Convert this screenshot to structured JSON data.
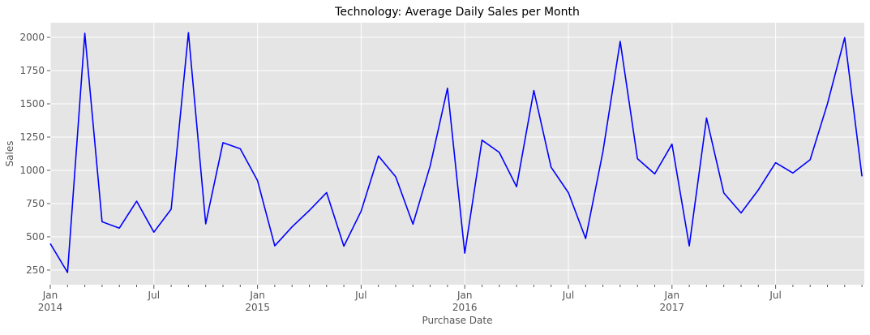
{
  "chart_data": {
    "type": "line",
    "title": "Technology: Average Daily Sales per Month",
    "xlabel": "Purchase Date",
    "ylabel": "Sales",
    "ylim": [
      140,
      2110
    ],
    "yticks": [
      250,
      500,
      750,
      1000,
      1250,
      1500,
      1750,
      2000
    ],
    "ytick_labels": [
      "250",
      "500",
      "750",
      "1000",
      "1250",
      "1500",
      "1750",
      "2000"
    ],
    "x_start": "2014-01",
    "x_end": "2017-12",
    "xticks_major": [
      {
        "index": 0,
        "label": "Jan",
        "sublabel": "2014"
      },
      {
        "index": 6,
        "label": "Jul",
        "sublabel": ""
      },
      {
        "index": 12,
        "label": "Jan",
        "sublabel": "2015"
      },
      {
        "index": 18,
        "label": "Jul",
        "sublabel": ""
      },
      {
        "index": 24,
        "label": "Jan",
        "sublabel": "2016"
      },
      {
        "index": 30,
        "label": "Jul",
        "sublabel": ""
      },
      {
        "index": 36,
        "label": "Jan",
        "sublabel": "2017"
      },
      {
        "index": 42,
        "label": "Jul",
        "sublabel": ""
      }
    ],
    "grid": true,
    "series": [
      {
        "name": "Technology",
        "color": "#0000ff",
        "x": [
          "2014-01",
          "2014-02",
          "2014-03",
          "2014-04",
          "2014-05",
          "2014-06",
          "2014-07",
          "2014-08",
          "2014-09",
          "2014-10",
          "2014-11",
          "2014-12",
          "2015-01",
          "2015-02",
          "2015-03",
          "2015-04",
          "2015-05",
          "2015-06",
          "2015-07",
          "2015-08",
          "2015-09",
          "2015-10",
          "2015-11",
          "2015-12",
          "2016-01",
          "2016-02",
          "2016-03",
          "2016-04",
          "2016-05",
          "2016-06",
          "2016-07",
          "2016-08",
          "2016-09",
          "2016-10",
          "2016-11",
          "2016-12",
          "2017-01",
          "2017-02",
          "2017-03",
          "2017-04",
          "2017-05",
          "2017-06",
          "2017-07",
          "2017-08",
          "2017-09",
          "2017-10",
          "2017-11",
          "2017-12"
        ],
        "values": [
          449,
          232,
          2030,
          613,
          566,
          768,
          535,
          708,
          2035,
          598,
          1208,
          1162,
          923,
          432,
          575,
          698,
          833,
          430,
          693,
          1108,
          952,
          595,
          1035,
          1617,
          377,
          1227,
          1135,
          877,
          1600,
          1023,
          832,
          487,
          1140,
          1970,
          1088,
          973,
          1197,
          432,
          1393,
          830,
          680,
          853,
          1057,
          980,
          1080,
          1500,
          1997,
          955
        ]
      }
    ]
  },
  "colors": {
    "plot_background": "#e5e5e5",
    "grid": "#ffffff",
    "line": "#0000ff",
    "text": "#555555",
    "title": "#000000"
  }
}
